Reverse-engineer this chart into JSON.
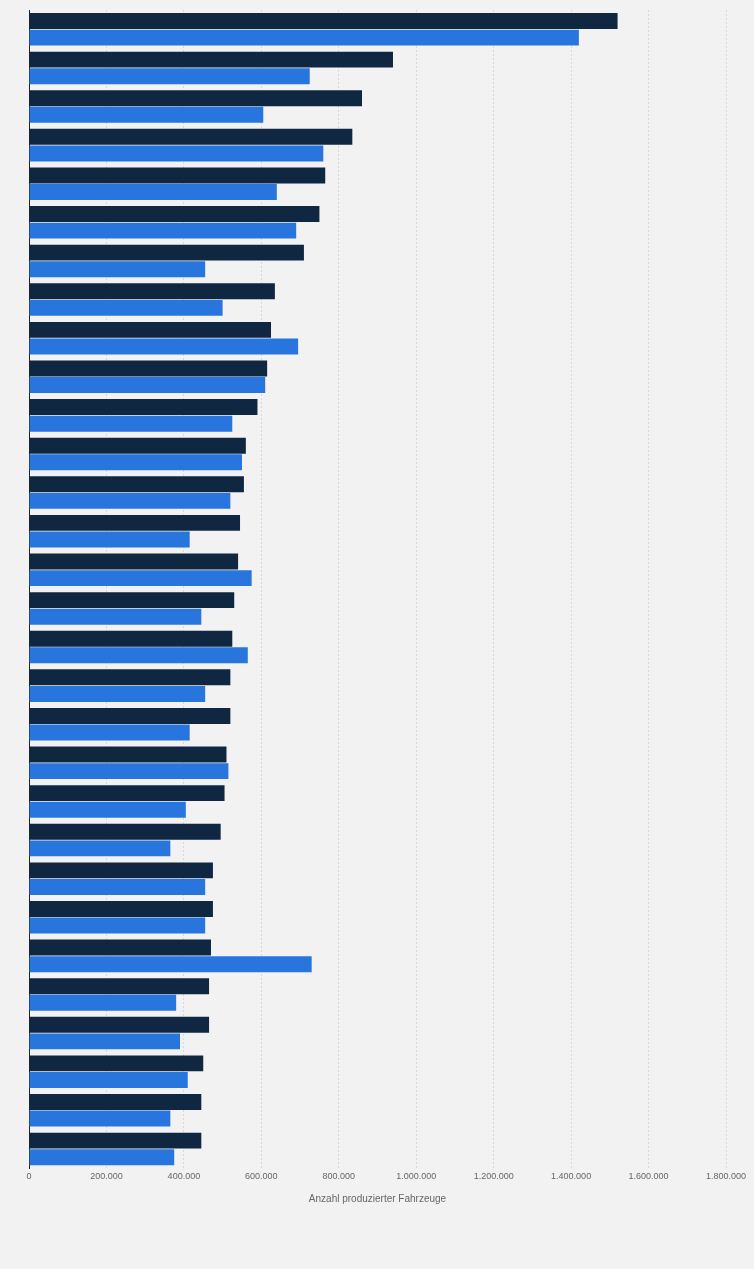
{
  "chart_data": {
    "type": "bar",
    "orientation": "horizontal",
    "xlabel": "Anzahl produzierter Fahrzeuge",
    "categories": [
      null,
      null,
      null,
      null,
      null,
      null,
      null,
      null,
      null,
      null,
      null,
      null,
      null,
      null,
      null,
      null,
      null,
      null,
      null,
      null,
      null,
      null,
      null,
      null,
      null,
      null,
      null,
      null,
      null,
      null
    ],
    "series": [
      {
        "color": "#0f2741",
        "values": [
          1520000,
          940000,
          860000,
          835000,
          765000,
          750000,
          710000,
          635000,
          625000,
          615000,
          590000,
          560000,
          555000,
          545000,
          540000,
          530000,
          525000,
          520000,
          520000,
          510000,
          505000,
          495000,
          475000,
          475000,
          470000,
          465000,
          465000,
          450000,
          445000,
          445000
        ]
      },
      {
        "color": "#2876dd",
        "values": [
          1420000,
          725000,
          605000,
          760000,
          640000,
          690000,
          455000,
          500000,
          695000,
          610000,
          525000,
          550000,
          520000,
          415000,
          575000,
          445000,
          565000,
          455000,
          415000,
          515000,
          405000,
          365000,
          455000,
          455000,
          730000,
          380000,
          390000,
          410000,
          365000,
          375000
        ]
      }
    ],
    "xlim": [
      0,
      1800000
    ],
    "xticks": [
      0,
      {
        "value": 200000,
        "label": "200.000"
      },
      {
        "value": 400000,
        "label": "400.000"
      },
      {
        "value": 600000,
        "label": "600.000"
      },
      {
        "value": 800000,
        "label": "800.000"
      },
      {
        "value": 1000000,
        "label": "1.000.000"
      },
      {
        "value": 1200000,
        "label": "1.200.000"
      },
      {
        "value": 1400000,
        "label": "1.400.000"
      },
      {
        "value": 1600000,
        "label": "1.600.000"
      },
      {
        "value": 1800000,
        "label": "1.800.000"
      }
    ],
    "grid": "x",
    "tick_labels": "x"
  }
}
